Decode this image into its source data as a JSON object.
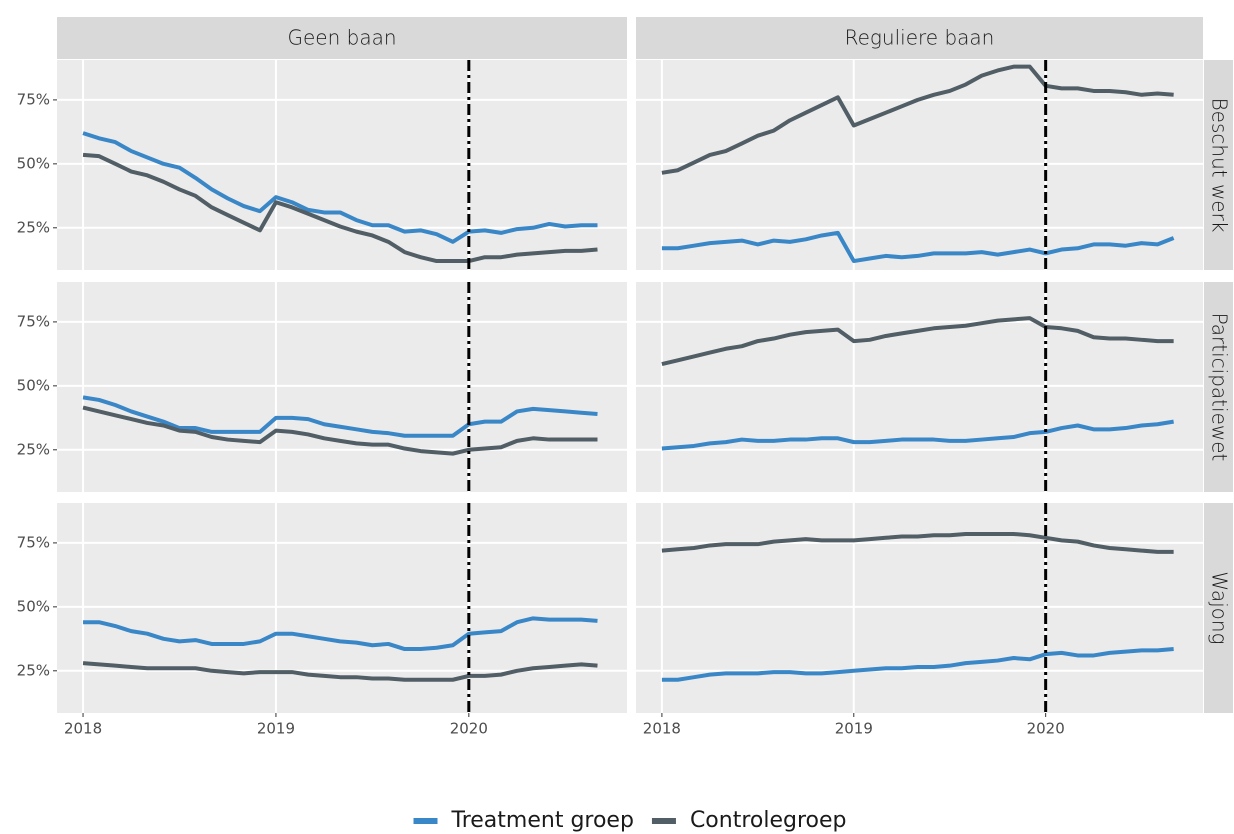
{
  "chart_data": [
    {
      "type": "line",
      "title": "Geen baan",
      "x": [
        2018,
        2018.083,
        2018.167,
        2018.25,
        2018.333,
        2018.417,
        2018.5,
        2018.583,
        2018.667,
        2018.75,
        2018.833,
        2018.917,
        2019,
        2019.083,
        2019.167,
        2019.25,
        2019.333,
        2019.417,
        2019.5,
        2019.583,
        2019.667,
        2019.75,
        2019.833,
        2019.917,
        2020,
        2020.083,
        2020.167,
        2020.25,
        2020.333,
        2020.417,
        2020.5,
        2020.583,
        2020.667
      ],
      "series": [
        {
          "name": "Treatment groep",
          "color": "#3a87c8",
          "values": [
            62,
            60,
            58.5,
            55,
            52.5,
            50,
            48.5,
            44.5,
            40,
            36.5,
            33.5,
            31.5,
            37,
            35,
            32,
            31,
            31,
            28,
            26,
            26,
            23.5,
            24,
            22.5,
            19.5,
            23.5,
            24,
            23,
            24.5,
            25,
            26.5,
            25.5,
            26,
            26
          ]
        },
        {
          "name": "Controlegroep",
          "color": "#515e66",
          "values": [
            53.5,
            53,
            50,
            47,
            45.5,
            43,
            40,
            37.5,
            33,
            30,
            27,
            24,
            35,
            33,
            30.5,
            28,
            25.5,
            23.5,
            22,
            19.5,
            15.5,
            13.5,
            12,
            12,
            12,
            13.5,
            13.5,
            14.5,
            15,
            15.5,
            16,
            16,
            16.5
          ]
        }
      ],
      "xlim": [
        2017.865,
        2020.82
      ],
      "ylim": [
        8.5,
        90.6
      ],
      "yticks": [
        {
          "value": 25,
          "label": "25%"
        },
        {
          "value": 50,
          "label": "50%"
        },
        {
          "value": 75,
          "label": "75%"
        }
      ],
      "vline": 2020,
      "grid": true
    },
    {
      "type": "line",
      "title": "Reguliere baan",
      "row_label": "Beschut werk",
      "x": [
        2018,
        2018.083,
        2018.167,
        2018.25,
        2018.333,
        2018.417,
        2018.5,
        2018.583,
        2018.667,
        2018.75,
        2018.833,
        2018.917,
        2019,
        2019.083,
        2019.167,
        2019.25,
        2019.333,
        2019.417,
        2019.5,
        2019.583,
        2019.667,
        2019.75,
        2019.833,
        2019.917,
        2020,
        2020.083,
        2020.167,
        2020.25,
        2020.333,
        2020.417,
        2020.5,
        2020.583,
        2020.667
      ],
      "series": [
        {
          "name": "Treatment groep",
          "color": "#3a87c8",
          "values": [
            17,
            17,
            18,
            19,
            19.5,
            20,
            18.5,
            20,
            19.5,
            20.5,
            22,
            23,
            12,
            13,
            14,
            13.5,
            14,
            15,
            15,
            15,
            15.5,
            14.5,
            15.5,
            16.5,
            15,
            16.5,
            17,
            18.5,
            18.5,
            18,
            19,
            18.5,
            21
          ]
        },
        {
          "name": "Controlegroep",
          "color": "#515e66",
          "values": [
            46.5,
            47.5,
            50.5,
            53.5,
            55,
            58,
            61,
            63,
            67,
            70,
            73,
            76,
            65,
            67.5,
            70,
            72.5,
            75,
            77,
            78.5,
            81,
            84.5,
            86.5,
            88,
            88,
            80.5,
            79.5,
            79.5,
            78.5,
            78.5,
            78,
            77,
            77.5,
            77
          ]
        }
      ],
      "xlim": [
        2017.865,
        2020.82
      ],
      "ylim": [
        8.5,
        90.6
      ],
      "vline": 2020,
      "grid": true
    },
    {
      "type": "line",
      "x": [
        2018,
        2018.083,
        2018.167,
        2018.25,
        2018.333,
        2018.417,
        2018.5,
        2018.583,
        2018.667,
        2018.75,
        2018.833,
        2018.917,
        2019,
        2019.083,
        2019.167,
        2019.25,
        2019.333,
        2019.417,
        2019.5,
        2019.583,
        2019.667,
        2019.75,
        2019.833,
        2019.917,
        2020,
        2020.083,
        2020.167,
        2020.25,
        2020.333,
        2020.417,
        2020.5,
        2020.583,
        2020.667
      ],
      "series": [
        {
          "name": "Treatment groep",
          "color": "#3a87c8",
          "values": [
            45.5,
            44.5,
            42.5,
            40,
            38,
            36,
            33.5,
            33.5,
            32,
            32,
            32,
            32,
            37.5,
            37.5,
            37,
            35,
            34,
            33,
            32,
            31.5,
            30.5,
            30.5,
            30.5,
            30.5,
            35,
            36,
            36,
            40,
            41,
            40.5,
            40,
            39.5,
            39
          ]
        },
        {
          "name": "Controlegroep",
          "color": "#515e66",
          "values": [
            41.5,
            40,
            38.5,
            37,
            35.5,
            34.5,
            32.5,
            32,
            30,
            29,
            28.5,
            28,
            32.5,
            32,
            31,
            29.5,
            28.5,
            27.5,
            27,
            27,
            25.5,
            24.5,
            24,
            23.5,
            25,
            25.5,
            26,
            28.5,
            29.5,
            29,
            29,
            29,
            29
          ]
        }
      ],
      "xlim": [
        2017.865,
        2020.82
      ],
      "ylim": [
        8.5,
        90.6
      ],
      "yticks": [
        {
          "value": 25,
          "label": "25%"
        },
        {
          "value": 50,
          "label": "50%"
        },
        {
          "value": 75,
          "label": "75%"
        }
      ],
      "vline": 2020,
      "grid": true
    },
    {
      "type": "line",
      "row_label": "Participatiewet",
      "x": [
        2018,
        2018.083,
        2018.167,
        2018.25,
        2018.333,
        2018.417,
        2018.5,
        2018.583,
        2018.667,
        2018.75,
        2018.833,
        2018.917,
        2019,
        2019.083,
        2019.167,
        2019.25,
        2019.333,
        2019.417,
        2019.5,
        2019.583,
        2019.667,
        2019.75,
        2019.833,
        2019.917,
        2020,
        2020.083,
        2020.167,
        2020.25,
        2020.333,
        2020.417,
        2020.5,
        2020.583,
        2020.667
      ],
      "series": [
        {
          "name": "Treatment groep",
          "color": "#3a87c8",
          "values": [
            25.5,
            26,
            26.5,
            27.5,
            28,
            29,
            28.5,
            28.5,
            29,
            29,
            29.5,
            29.5,
            28,
            28,
            28.5,
            29,
            29,
            29,
            28.5,
            28.5,
            29,
            29.5,
            30,
            31.5,
            32,
            33.5,
            34.5,
            33,
            33,
            33.5,
            34.5,
            35,
            36
          ]
        },
        {
          "name": "Controlegroep",
          "color": "#515e66",
          "values": [
            58.5,
            60,
            61.5,
            63,
            64.5,
            65.5,
            67.5,
            68.5,
            70,
            71,
            71.5,
            72,
            67.5,
            68,
            69.5,
            70.5,
            71.5,
            72.5,
            73,
            73.5,
            74.5,
            75.5,
            76,
            76.5,
            73,
            72.5,
            71.5,
            69,
            68.5,
            68.5,
            68,
            67.5,
            67.5
          ]
        }
      ],
      "xlim": [
        2017.865,
        2020.82
      ],
      "ylim": [
        8.5,
        90.6
      ],
      "vline": 2020,
      "grid": true
    },
    {
      "type": "line",
      "x": [
        2018,
        2018.083,
        2018.167,
        2018.25,
        2018.333,
        2018.417,
        2018.5,
        2018.583,
        2018.667,
        2018.75,
        2018.833,
        2018.917,
        2019,
        2019.083,
        2019.167,
        2019.25,
        2019.333,
        2019.417,
        2019.5,
        2019.583,
        2019.667,
        2019.75,
        2019.833,
        2019.917,
        2020,
        2020.083,
        2020.167,
        2020.25,
        2020.333,
        2020.417,
        2020.5,
        2020.583,
        2020.667
      ],
      "series": [
        {
          "name": "Treatment groep",
          "color": "#3a87c8",
          "values": [
            44,
            44,
            42.5,
            40.5,
            39.5,
            37.5,
            36.5,
            37,
            35.5,
            35.5,
            35.5,
            36.5,
            39.5,
            39.5,
            38.5,
            37.5,
            36.5,
            36,
            35,
            35.5,
            33.5,
            33.5,
            34,
            35,
            39.5,
            40,
            40.5,
            44,
            45.5,
            45,
            45,
            45,
            44.5
          ]
        },
        {
          "name": "Controlegroep",
          "color": "#515e66",
          "values": [
            28,
            27.5,
            27,
            26.5,
            26,
            26,
            26,
            26,
            25,
            24.5,
            24,
            24.5,
            24.5,
            24.5,
            23.5,
            23,
            22.5,
            22.5,
            22,
            22,
            21.5,
            21.5,
            21.5,
            21.5,
            23,
            23,
            23.5,
            25,
            26,
            26.5,
            27,
            27.5,
            27
          ]
        }
      ],
      "xlim": [
        2017.865,
        2020.82
      ],
      "ylim": [
        8.5,
        90.6
      ],
      "xticks": [
        2018,
        2019,
        2020
      ],
      "yticks": [
        {
          "value": 25,
          "label": "25%"
        },
        {
          "value": 50,
          "label": "50%"
        },
        {
          "value": 75,
          "label": "75%"
        }
      ],
      "vline": 2020,
      "grid": true
    },
    {
      "type": "line",
      "row_label": "Wajong",
      "x": [
        2018,
        2018.083,
        2018.167,
        2018.25,
        2018.333,
        2018.417,
        2018.5,
        2018.583,
        2018.667,
        2018.75,
        2018.833,
        2018.917,
        2019,
        2019.083,
        2019.167,
        2019.25,
        2019.333,
        2019.417,
        2019.5,
        2019.583,
        2019.667,
        2019.75,
        2019.833,
        2019.917,
        2020,
        2020.083,
        2020.167,
        2020.25,
        2020.333,
        2020.417,
        2020.5,
        2020.583,
        2020.667
      ],
      "series": [
        {
          "name": "Treatment groep",
          "color": "#3a87c8",
          "values": [
            21.5,
            21.5,
            22.5,
            23.5,
            24,
            24,
            24,
            24.5,
            24.5,
            24,
            24,
            24.5,
            25,
            25.5,
            26,
            26,
            26.5,
            26.5,
            27,
            28,
            28.5,
            29,
            30,
            29.5,
            31.5,
            32,
            31,
            31,
            32,
            32.5,
            33,
            33,
            33.5
          ]
        },
        {
          "name": "Controlegroep",
          "color": "#515e66",
          "values": [
            72,
            72.5,
            73,
            74,
            74.5,
            74.5,
            74.5,
            75.5,
            76,
            76.5,
            76,
            76,
            76,
            76.5,
            77,
            77.5,
            77.5,
            78,
            78,
            78.5,
            78.5,
            78.5,
            78.5,
            78,
            77,
            76,
            75.5,
            74,
            73,
            72.5,
            72,
            71.5,
            71.5
          ]
        }
      ],
      "xlim": [
        2017.865,
        2020.82
      ],
      "ylim": [
        8.5,
        90.6
      ],
      "xticks": [
        2018,
        2019,
        2020
      ],
      "vline": 2020,
      "grid": true
    }
  ]
}
